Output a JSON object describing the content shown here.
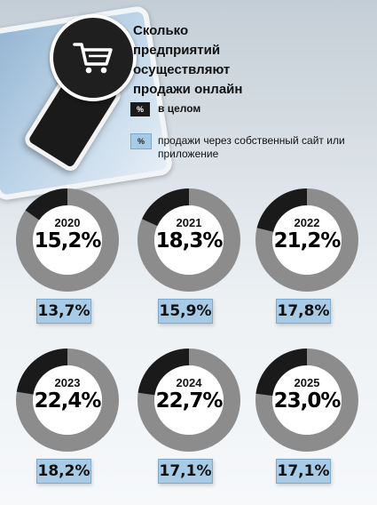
{
  "header": {
    "title_lines": [
      "Сколько",
      "предприятий",
      "осуществляют",
      "продажи онлайн"
    ],
    "icon": "shopping-cart-icon"
  },
  "legend": {
    "total_symbol": "%",
    "total_label": "в целом",
    "own_site_symbol": "%",
    "own_site_label": "продажи через собственный сайт или приложение"
  },
  "colors": {
    "ring": "#8c8c8c",
    "segment": "#1a1a1a",
    "badge": "#a7cbe6"
  },
  "chart_data": {
    "type": "pie",
    "unit": "%",
    "categories": [
      "2020",
      "2021",
      "2022",
      "2023",
      "2024",
      "2025"
    ],
    "series": [
      {
        "name": "в целом",
        "values": [
          15.2,
          18.3,
          21.2,
          22.4,
          22.7,
          23.0
        ]
      },
      {
        "name": "продажи через собственный сайт или приложение",
        "values": [
          13.7,
          15.9,
          17.8,
          18.2,
          17.1,
          17.1
        ]
      }
    ],
    "items": [
      {
        "year": "2020",
        "total_label": "15,2%",
        "site_label": "13,7%"
      },
      {
        "year": "2021",
        "total_label": "18,3%",
        "site_label": "15,9%"
      },
      {
        "year": "2022",
        "total_label": "21,2%",
        "site_label": "17,8%"
      },
      {
        "year": "2023",
        "total_label": "22,4%",
        "site_label": "18,2%"
      },
      {
        "year": "2024",
        "total_label": "22,7%",
        "site_label": "17,1%"
      },
      {
        "year": "2025",
        "total_label": "23,0%",
        "site_label": "17,1%"
      }
    ]
  }
}
